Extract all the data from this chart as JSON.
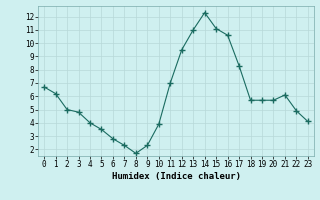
{
  "x": [
    0,
    1,
    2,
    3,
    4,
    5,
    6,
    7,
    8,
    9,
    10,
    11,
    12,
    13,
    14,
    15,
    16,
    17,
    18,
    19,
    20,
    21,
    22,
    23
  ],
  "y": [
    6.7,
    6.2,
    5.0,
    4.8,
    4.0,
    3.5,
    2.8,
    2.3,
    1.7,
    2.3,
    3.9,
    7.0,
    9.5,
    11.0,
    12.3,
    11.1,
    10.6,
    8.3,
    5.7,
    5.7,
    5.7,
    6.1,
    4.9,
    4.1
  ],
  "line_color": "#1a6b60",
  "marker": "+",
  "marker_size": 4,
  "bg_color": "#cff0f0",
  "grid_color": "#b8d8d8",
  "xlabel": "Humidex (Indice chaleur)",
  "xlim": [
    -0.5,
    23.5
  ],
  "ylim": [
    1.5,
    12.8
  ],
  "yticks": [
    2,
    3,
    4,
    5,
    6,
    7,
    8,
    9,
    10,
    11,
    12
  ],
  "xticks": [
    0,
    1,
    2,
    3,
    4,
    5,
    6,
    7,
    8,
    9,
    10,
    11,
    12,
    13,
    14,
    15,
    16,
    17,
    18,
    19,
    20,
    21,
    22,
    23
  ],
  "label_fontsize": 6.5,
  "tick_fontsize": 5.5
}
